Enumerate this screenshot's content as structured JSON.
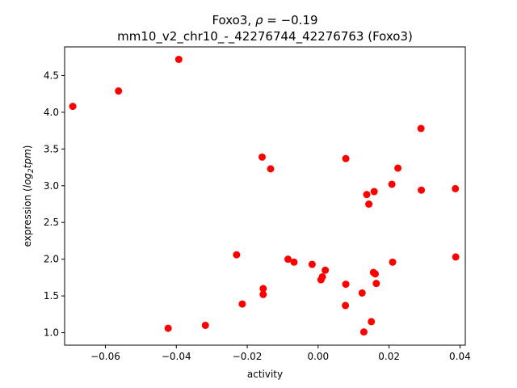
{
  "chart_data": {
    "type": "scatter",
    "title_line1_prefix": "Foxo3, ",
    "title_line1_rho": "ρ",
    "title_line1_suffix": " = −0.19",
    "title_line2": "mm10_v2_chr10_-_42276744_42276763 (Foxo3)",
    "xlabel": "activity",
    "ylabel_prefix": "expression (",
    "ylabel_log": "log",
    "ylabel_sub": "2",
    "ylabel_tpm": "tpm",
    "ylabel_suffix": ")",
    "xlim": [
      -0.0715,
      0.0415
    ],
    "ylim": [
      0.83,
      4.89
    ],
    "xticks": [
      -0.06,
      -0.04,
      -0.02,
      0.0,
      0.02,
      0.04
    ],
    "xtick_labels": [
      "−0.06",
      "−0.04",
      "−0.02",
      "0.00",
      "0.02",
      "0.04"
    ],
    "yticks": [
      1.0,
      1.5,
      2.0,
      2.5,
      3.0,
      3.5,
      4.0,
      4.5
    ],
    "ytick_labels": [
      "1.0",
      "1.5",
      "2.0",
      "2.5",
      "3.0",
      "3.5",
      "4.0",
      "4.5"
    ],
    "marker_color": "#ff0000",
    "points": [
      {
        "x": -0.0692,
        "y": 4.08
      },
      {
        "x": -0.0563,
        "y": 4.29
      },
      {
        "x": -0.0393,
        "y": 4.72
      },
      {
        "x": -0.0423,
        "y": 1.06
      },
      {
        "x": -0.0318,
        "y": 1.1
      },
      {
        "x": -0.023,
        "y": 2.06
      },
      {
        "x": -0.0214,
        "y": 1.39
      },
      {
        "x": -0.0158,
        "y": 3.39
      },
      {
        "x": -0.0134,
        "y": 3.23
      },
      {
        "x": -0.0155,
        "y": 1.6
      },
      {
        "x": -0.0155,
        "y": 1.52
      },
      {
        "x": -0.0085,
        "y": 2.0
      },
      {
        "x": -0.0068,
        "y": 1.96
      },
      {
        "x": -0.0017,
        "y": 1.93
      },
      {
        "x": 0.0008,
        "y": 1.72
      },
      {
        "x": 0.0012,
        "y": 1.76
      },
      {
        "x": 0.002,
        "y": 1.85
      },
      {
        "x": 0.0078,
        "y": 3.37
      },
      {
        "x": 0.0078,
        "y": 1.66
      },
      {
        "x": 0.0077,
        "y": 1.37
      },
      {
        "x": 0.0124,
        "y": 1.54
      },
      {
        "x": 0.0129,
        "y": 1.01
      },
      {
        "x": 0.0137,
        "y": 2.88
      },
      {
        "x": 0.0143,
        "y": 2.75
      },
      {
        "x": 0.015,
        "y": 1.15
      },
      {
        "x": 0.0158,
        "y": 2.92
      },
      {
        "x": 0.0156,
        "y": 1.82
      },
      {
        "x": 0.0161,
        "y": 1.8
      },
      {
        "x": 0.0164,
        "y": 1.67
      },
      {
        "x": 0.0208,
        "y": 3.02
      },
      {
        "x": 0.021,
        "y": 1.96
      },
      {
        "x": 0.0225,
        "y": 3.24
      },
      {
        "x": 0.029,
        "y": 3.78
      },
      {
        "x": 0.0291,
        "y": 2.94
      },
      {
        "x": 0.0387,
        "y": 2.96
      },
      {
        "x": 0.0388,
        "y": 2.03
      }
    ]
  }
}
